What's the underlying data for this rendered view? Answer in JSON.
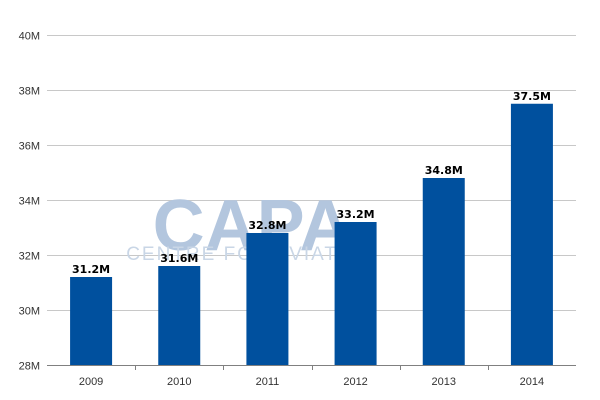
{
  "chart_data": {
    "type": "bar",
    "categories": [
      "2009",
      "2010",
      "2011",
      "2012",
      "2013",
      "2014"
    ],
    "values": [
      31.2,
      31.6,
      32.8,
      33.2,
      34.8,
      37.5
    ],
    "data_labels": [
      "31.2M",
      "31.6M",
      "32.8M",
      "33.2M",
      "34.8M",
      "37.5M"
    ],
    "y_ticks": [
      28,
      30,
      32,
      34,
      36,
      38,
      40
    ],
    "y_tick_labels": [
      "28M",
      "30M",
      "32M",
      "34M",
      "36M",
      "38M",
      "40M"
    ],
    "ylim": [
      28,
      40
    ],
    "grid": true,
    "legend": "none",
    "bar_color": "#00509e",
    "title": "",
    "xlabel": "",
    "ylabel": ""
  },
  "watermark": {
    "logo_text": "CAPA",
    "tagline_text": "CENTRE FOR AVIATION"
  }
}
